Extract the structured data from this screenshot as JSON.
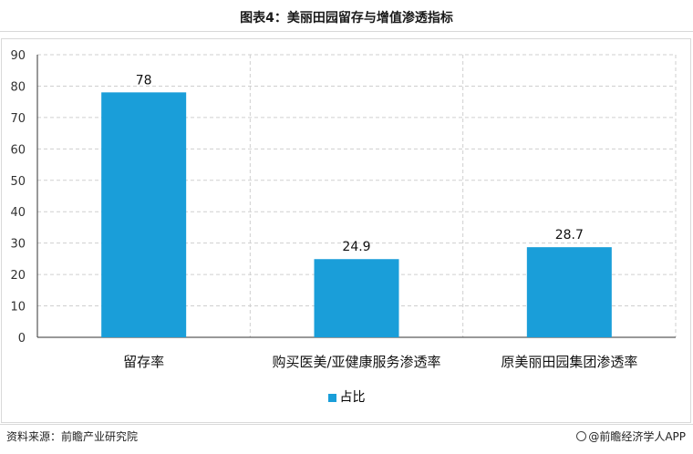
{
  "title": "图表4：美丽田园留存与增值渗透指标",
  "chart_data": {
    "type": "bar",
    "categories": [
      "留存率",
      "购买医美/亚健康服务渗透率",
      "原美丽田园集团渗透率"
    ],
    "series": [
      {
        "name": "占比",
        "values": [
          78,
          24.9,
          28.7
        ],
        "labels": [
          "78",
          "24.9",
          "28.7"
        ]
      }
    ],
    "ylim": [
      0,
      90
    ],
    "yticks": [
      0,
      10,
      20,
      30,
      40,
      50,
      60,
      70,
      80,
      90
    ],
    "grid": true,
    "legend_position": "bottom",
    "bar_color": "#1a9ed9"
  },
  "footer": {
    "source": "资料来源：前瞻产业研究院",
    "credit": "@前瞻经济学人APP"
  }
}
